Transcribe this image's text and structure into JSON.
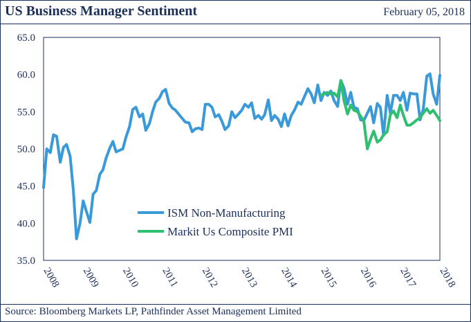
{
  "header": {
    "title": "US Business Manager Sentiment",
    "date": "February 05, 2018"
  },
  "footer": {
    "source": "Source: Bloomberg Markets LP, Pathfinder Asset Management Limited"
  },
  "chart_data": {
    "type": "line",
    "title": "US Business Manager Sentiment",
    "xlabel": "",
    "ylabel": "",
    "ylim": [
      35,
      65
    ],
    "xlim": [
      2008,
      2018
    ],
    "yticks": [
      "35.0",
      "40.0",
      "45.0",
      "50.0",
      "55.0",
      "60.0",
      "65.0"
    ],
    "xticks": [
      "2008",
      "2009",
      "2010",
      "2011",
      "2012",
      "2013",
      "2014",
      "2015",
      "2016",
      "2017",
      "2018"
    ],
    "grid": false,
    "legend_position": "lower-center",
    "colors": {
      "ism": "#3a9ad9",
      "markit": "#2fbf71",
      "text": "#1b2f5b",
      "frame": "#1b2f5b"
    },
    "series": [
      {
        "name": "ISM Non-Manufacturing",
        "points": [
          [
            2008.0,
            44.8
          ],
          [
            2008.08,
            50.0
          ],
          [
            2008.17,
            49.5
          ],
          [
            2008.25,
            51.9
          ],
          [
            2008.33,
            51.7
          ],
          [
            2008.42,
            48.2
          ],
          [
            2008.5,
            50.2
          ],
          [
            2008.58,
            50.6
          ],
          [
            2008.67,
            49.0
          ],
          [
            2008.75,
            44.5
          ],
          [
            2008.83,
            37.9
          ],
          [
            2008.92,
            40.0
          ],
          [
            2009.0,
            43.0
          ],
          [
            2009.08,
            41.6
          ],
          [
            2009.17,
            40.1
          ],
          [
            2009.25,
            43.9
          ],
          [
            2009.33,
            44.4
          ],
          [
            2009.42,
            46.6
          ],
          [
            2009.5,
            47.2
          ],
          [
            2009.58,
            48.8
          ],
          [
            2009.67,
            50.1
          ],
          [
            2009.75,
            51.0
          ],
          [
            2009.83,
            49.6
          ],
          [
            2009.92,
            49.8
          ],
          [
            2010.0,
            50.0
          ],
          [
            2010.08,
            51.6
          ],
          [
            2010.17,
            53.0
          ],
          [
            2010.25,
            55.3
          ],
          [
            2010.33,
            55.6
          ],
          [
            2010.42,
            54.3
          ],
          [
            2010.5,
            54.7
          ],
          [
            2010.58,
            52.5
          ],
          [
            2010.67,
            53.4
          ],
          [
            2010.75,
            55.0
          ],
          [
            2010.83,
            56.3
          ],
          [
            2010.92,
            56.8
          ],
          [
            2011.0,
            57.7
          ],
          [
            2011.08,
            58.0
          ],
          [
            2011.17,
            56.1
          ],
          [
            2011.25,
            55.5
          ],
          [
            2011.33,
            55.2
          ],
          [
            2011.42,
            54.6
          ],
          [
            2011.5,
            54.1
          ],
          [
            2011.58,
            53.6
          ],
          [
            2011.67,
            53.5
          ],
          [
            2011.75,
            52.3
          ],
          [
            2011.83,
            52.7
          ],
          [
            2011.92,
            52.8
          ],
          [
            2012.0,
            52.6
          ],
          [
            2012.08,
            56.0
          ],
          [
            2012.17,
            56.0
          ],
          [
            2012.25,
            55.6
          ],
          [
            2012.33,
            54.3
          ],
          [
            2012.42,
            54.6
          ],
          [
            2012.5,
            53.7
          ],
          [
            2012.58,
            52.6
          ],
          [
            2012.67,
            53.1
          ],
          [
            2012.75,
            55.0
          ],
          [
            2012.83,
            54.2
          ],
          [
            2012.92,
            54.7
          ],
          [
            2013.0,
            55.2
          ],
          [
            2013.08,
            56.0
          ],
          [
            2013.17,
            55.6
          ],
          [
            2013.25,
            56.2
          ],
          [
            2013.33,
            54.1
          ],
          [
            2013.42,
            54.5
          ],
          [
            2013.5,
            54.0
          ],
          [
            2013.58,
            54.6
          ],
          [
            2013.67,
            56.6
          ],
          [
            2013.75,
            53.8
          ],
          [
            2013.83,
            54.5
          ],
          [
            2013.92,
            54.0
          ],
          [
            2014.0,
            53.0
          ],
          [
            2014.08,
            54.7
          ],
          [
            2014.17,
            53.1
          ],
          [
            2014.25,
            54.5
          ],
          [
            2014.33,
            55.2
          ],
          [
            2014.42,
            56.3
          ],
          [
            2014.5,
            56.0
          ],
          [
            2014.58,
            57.0
          ],
          [
            2014.67,
            58.1
          ],
          [
            2014.75,
            57.4
          ],
          [
            2014.83,
            56.2
          ],
          [
            2014.92,
            58.6
          ],
          [
            2015.0,
            56.5
          ],
          [
            2015.08,
            57.6
          ],
          [
            2015.17,
            57.2
          ],
          [
            2015.25,
            57.8
          ],
          [
            2015.33,
            56.5
          ],
          [
            2015.42,
            55.7
          ],
          [
            2015.5,
            59.2
          ],
          [
            2015.58,
            58.2
          ],
          [
            2015.67,
            56.0
          ],
          [
            2015.75,
            57.6
          ],
          [
            2015.83,
            55.6
          ],
          [
            2015.92,
            55.4
          ],
          [
            2016.0,
            53.9
          ],
          [
            2016.08,
            53.8
          ],
          [
            2016.17,
            54.8
          ],
          [
            2016.25,
            55.7
          ],
          [
            2016.33,
            53.5
          ],
          [
            2016.42,
            56.1
          ],
          [
            2016.5,
            55.6
          ],
          [
            2016.58,
            51.8
          ],
          [
            2016.67,
            57.2
          ],
          [
            2016.75,
            54.8
          ],
          [
            2016.83,
            57.2
          ],
          [
            2016.92,
            57.2
          ],
          [
            2017.0,
            56.5
          ],
          [
            2017.08,
            57.6
          ],
          [
            2017.17,
            55.2
          ],
          [
            2017.25,
            57.5
          ],
          [
            2017.33,
            57.4
          ],
          [
            2017.42,
            57.4
          ],
          [
            2017.5,
            53.9
          ],
          [
            2017.58,
            55.3
          ],
          [
            2017.67,
            59.8
          ],
          [
            2017.75,
            60.1
          ],
          [
            2017.83,
            57.4
          ],
          [
            2017.92,
            56.0
          ],
          [
            2018.0,
            59.9
          ]
        ]
      },
      {
        "name": "Markit Us Composite PMI",
        "points": [
          [
            2015.0,
            57.2
          ],
          [
            2015.08,
            57.4
          ],
          [
            2015.17,
            57.6
          ],
          [
            2015.25,
            57.4
          ],
          [
            2015.33,
            57.5
          ],
          [
            2015.42,
            57.0
          ],
          [
            2015.5,
            59.2
          ],
          [
            2015.58,
            56.5
          ],
          [
            2015.67,
            54.7
          ],
          [
            2015.75,
            55.9
          ],
          [
            2015.83,
            55.2
          ],
          [
            2015.92,
            55.0
          ],
          [
            2016.0,
            54.4
          ],
          [
            2016.08,
            53.8
          ],
          [
            2016.17,
            50.0
          ],
          [
            2016.25,
            51.3
          ],
          [
            2016.33,
            52.4
          ],
          [
            2016.42,
            50.9
          ],
          [
            2016.5,
            51.2
          ],
          [
            2016.58,
            51.9
          ],
          [
            2016.67,
            52.3
          ],
          [
            2016.75,
            54.6
          ],
          [
            2016.83,
            55.1
          ],
          [
            2016.92,
            54.2
          ],
          [
            2017.0,
            55.9
          ],
          [
            2017.08,
            54.5
          ],
          [
            2017.17,
            53.2
          ],
          [
            2017.25,
            53.2
          ],
          [
            2017.33,
            53.5
          ],
          [
            2017.42,
            53.9
          ],
          [
            2017.5,
            54.2
          ],
          [
            2017.58,
            54.8
          ],
          [
            2017.67,
            55.4
          ],
          [
            2017.75,
            54.8
          ],
          [
            2017.83,
            55.2
          ],
          [
            2017.92,
            54.5
          ],
          [
            2018.0,
            53.8
          ]
        ]
      }
    ]
  }
}
